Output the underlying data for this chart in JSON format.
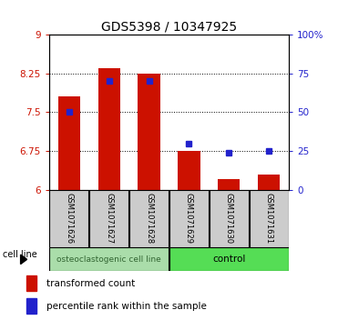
{
  "title": "GDS5398 / 10347925",
  "samples": [
    "GSM1071626",
    "GSM1071627",
    "GSM1071628",
    "GSM1071629",
    "GSM1071630",
    "GSM1071631"
  ],
  "red_bar_bottom": 6.0,
  "red_bar_tops": [
    7.8,
    8.36,
    8.25,
    6.75,
    6.2,
    6.3
  ],
  "blue_y": [
    7.5,
    8.1,
    8.1,
    6.9,
    6.72,
    6.75
  ],
  "ylim_left": [
    6.0,
    9.0
  ],
  "ylim_right": [
    0,
    100
  ],
  "yticks_left": [
    6,
    6.75,
    7.5,
    8.25,
    9
  ],
  "ytick_labels_left": [
    "6",
    "6.75",
    "7.5",
    "8.25",
    "9"
  ],
  "yticks_right": [
    0,
    25,
    50,
    75,
    100
  ],
  "ytick_labels_right": [
    "0",
    "25",
    "50",
    "75",
    "100%"
  ],
  "group1_label": "osteoclastogenic cell line",
  "group2_label": "control",
  "group1_indices": [
    0,
    1,
    2
  ],
  "group2_indices": [
    3,
    4,
    5
  ],
  "cell_line_label": "cell line",
  "legend_red": "transformed count",
  "legend_blue": "percentile rank within the sample",
  "bar_color": "#cc1100",
  "blue_color": "#2222cc",
  "group1_bg": "#aaddaa",
  "group2_bg": "#55dd55",
  "sample_box_bg": "#cccccc",
  "bar_width": 0.55,
  "title_fontsize": 10,
  "tick_fontsize": 7.5,
  "sample_fontsize": 6.0,
  "group_fontsize": 7.5,
  "legend_fontsize": 7.5
}
